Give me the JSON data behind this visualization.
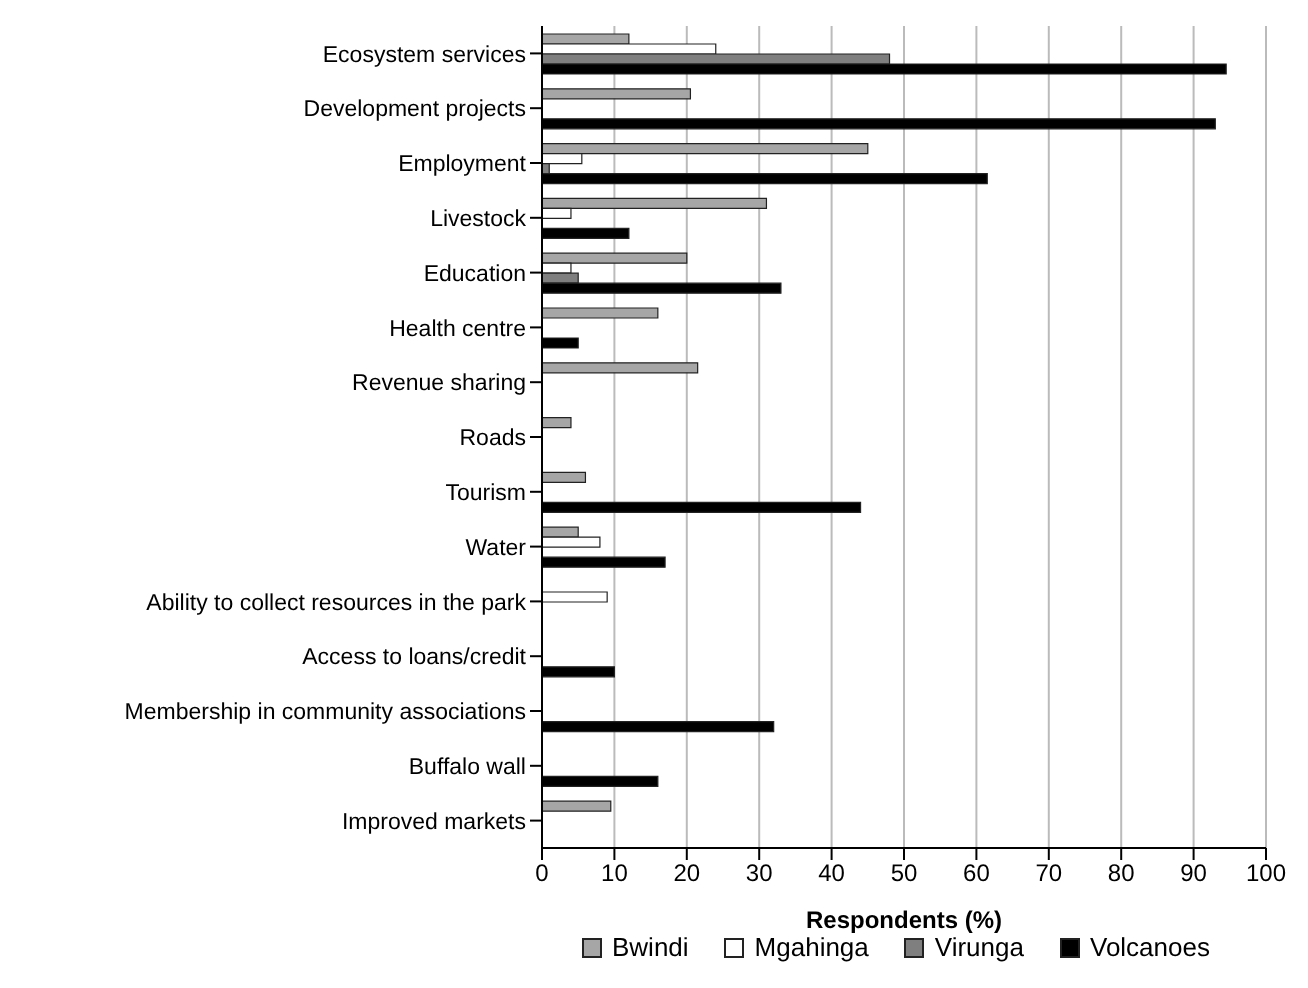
{
  "chart_data": {
    "type": "bar",
    "orientation": "horizontal",
    "xlabel": "Respondents (%)",
    "categories": [
      "Ecosystem services",
      "Development projects",
      "Employment",
      "Livestock",
      "Education",
      "Health centre",
      "Revenue sharing",
      "Roads",
      "Tourism",
      "Water",
      "Ability to collect resources in the park",
      "Access to loans/credit",
      "Membership in community associations",
      "Buffalo wall",
      "Improved markets"
    ],
    "series": [
      {
        "name": "Bwindi",
        "color": "#a6a6a6",
        "values": [
          12,
          20.5,
          45,
          31,
          20,
          16,
          21.5,
          4,
          6,
          5,
          null,
          null,
          null,
          null,
          9.5
        ]
      },
      {
        "name": "Mgahinga",
        "color": "#ffffff",
        "values": [
          24,
          null,
          5.5,
          4,
          4,
          null,
          null,
          null,
          null,
          8,
          9,
          null,
          null,
          null,
          null
        ]
      },
      {
        "name": "Virunga",
        "color": "#7f7f7f",
        "values": [
          48,
          null,
          1,
          null,
          5,
          null,
          null,
          null,
          null,
          null,
          null,
          null,
          null,
          null,
          null
        ]
      },
      {
        "name": "Volcanoes",
        "color": "#000000",
        "values": [
          94.5,
          93,
          61.5,
          12,
          33,
          5,
          null,
          null,
          44,
          17,
          null,
          10,
          32,
          16,
          null
        ]
      }
    ],
    "xlim": [
      0,
      100
    ],
    "xticks": [
      0,
      10,
      20,
      30,
      40,
      50,
      60,
      70,
      80,
      90,
      100
    ],
    "grid": "x",
    "legend": "bottom"
  }
}
